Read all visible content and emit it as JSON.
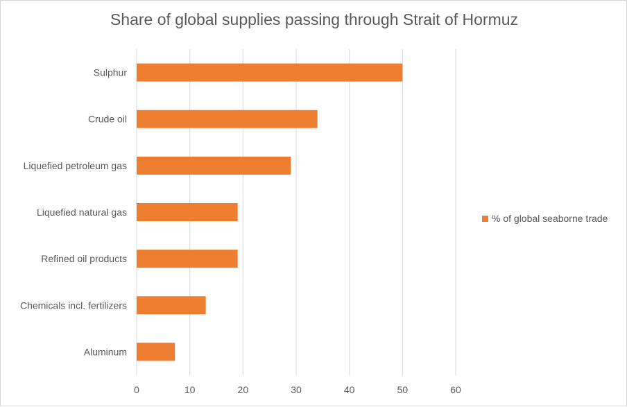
{
  "chart_data": {
    "type": "bar",
    "orientation": "horizontal",
    "title": "Share of global supplies passing through Strait of Hormuz",
    "categories": [
      "Sulphur",
      "Crude oil",
      "Liquefied petroleum gas",
      "Liquefied natural gas",
      "Refined oil products",
      "Chemicals incl. fertilizers",
      "Aluminum"
    ],
    "series": [
      {
        "name": "% of global seaborne trade",
        "values": [
          50,
          34,
          29,
          19,
          19,
          13,
          7.2
        ]
      }
    ],
    "xlim": [
      0,
      60
    ],
    "xticks": [
      0,
      10,
      20,
      30,
      40,
      50,
      60
    ],
    "xlabel": "",
    "ylabel": "",
    "grid": "vertical",
    "legend_position": "right",
    "colors": {
      "bar": "#ED7D31",
      "grid": "#d9d9d9",
      "text": "#595959"
    }
  }
}
